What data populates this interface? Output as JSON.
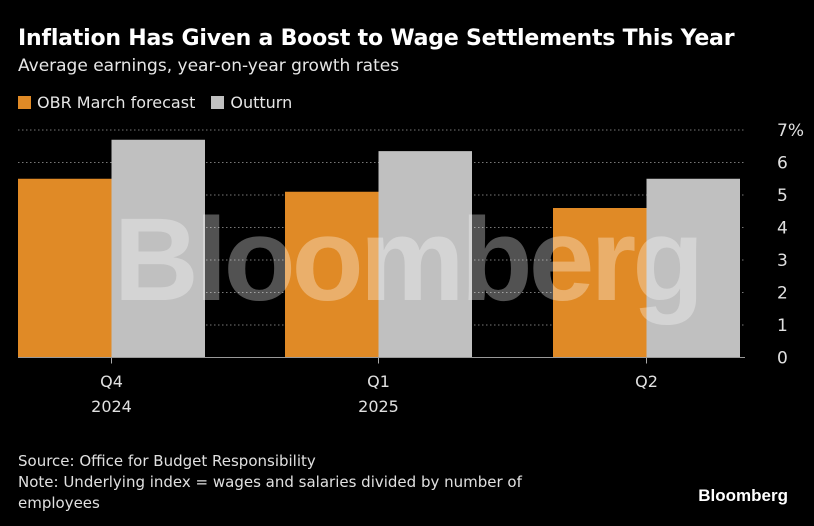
{
  "title": "Inflation Has Given a Boost to Wage Settlements This Year",
  "subtitle": "Average earnings, year-on-year growth rates",
  "source": "Source: Office for Budget Responsibility",
  "note": "Note: Underlying index = wages and salaries divided by number of employees",
  "brand": "Bloomberg",
  "watermark": "Bloomberg",
  "chart_data": {
    "type": "bar",
    "categories": [
      [
        "Q4",
        "2024"
      ],
      [
        "Q1",
        "2025"
      ],
      [
        "Q2",
        ""
      ]
    ],
    "series": [
      {
        "name": "OBR March forecast",
        "color": "#e08a26",
        "values": [
          5.5,
          5.1,
          4.6
        ]
      },
      {
        "name": "Outturn",
        "color": "#c0c0c0",
        "values": [
          6.7,
          6.35,
          5.5
        ]
      }
    ],
    "ylim": [
      0,
      7
    ],
    "yticks": [
      "0",
      "1",
      "2",
      "3",
      "4",
      "5",
      "6",
      "7%"
    ],
    "grid": true,
    "y_axis_position": "right",
    "legend_position": "top-left"
  }
}
